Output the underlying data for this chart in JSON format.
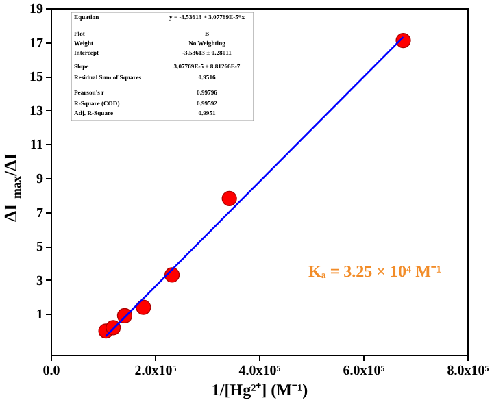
{
  "chart_data": {
    "type": "scatter",
    "xlabel": "1/[Hg²⁺] (M⁻¹)",
    "ylabel": "ΔI$_{max}$/ΔI",
    "xlim": [
      0,
      800000
    ],
    "ylim": [
      -1.4,
      19
    ],
    "xticks": [
      {
        "value": 0,
        "label": "0.0"
      },
      {
        "value": 200000,
        "label": "2.0x10⁵"
      },
      {
        "value": 400000,
        "label": "4.0x10⁵"
      },
      {
        "value": 600000,
        "label": "6.0x10⁵"
      },
      {
        "value": 800000,
        "label": "8.0x10⁵"
      }
    ],
    "yticks": [
      1,
      3,
      5,
      7,
      9,
      11,
      13,
      15,
      17,
      19
    ],
    "grid": false,
    "series": [
      {
        "type": "scatter",
        "color": "#ff0000",
        "marker": "circle",
        "x": [
          106000,
          120000,
          142000,
          178000,
          233000,
          343000,
          677000
        ],
        "values": [
          0.0,
          0.2,
          0.9,
          1.4,
          3.3,
          7.8,
          17.1
        ]
      },
      {
        "type": "line",
        "color": "#0000ff",
        "marker": "none",
        "line_style": "solid",
        "x": [
          106000,
          677000
        ],
        "values": [
          -0.3,
          17.3
        ]
      }
    ],
    "annotations": [
      "Equation",
      "y = -3.53613 + 3.07769E-5*x",
      "Plot",
      "B",
      "Weight",
      "No Weighting",
      "Intercept",
      "-3.53613 ± 0.28011",
      "Slope",
      "3.07769E-5 ± 8.81266E-7",
      "Residual Sum of Squares",
      "0.9516",
      "Pearson's r",
      "0.99796",
      "R-Square (COD)",
      "0.99592",
      "Adj. R-Square",
      "0.9951",
      "Kₐ = 3.25 × 10⁴ M⁻¹"
    ]
  }
}
